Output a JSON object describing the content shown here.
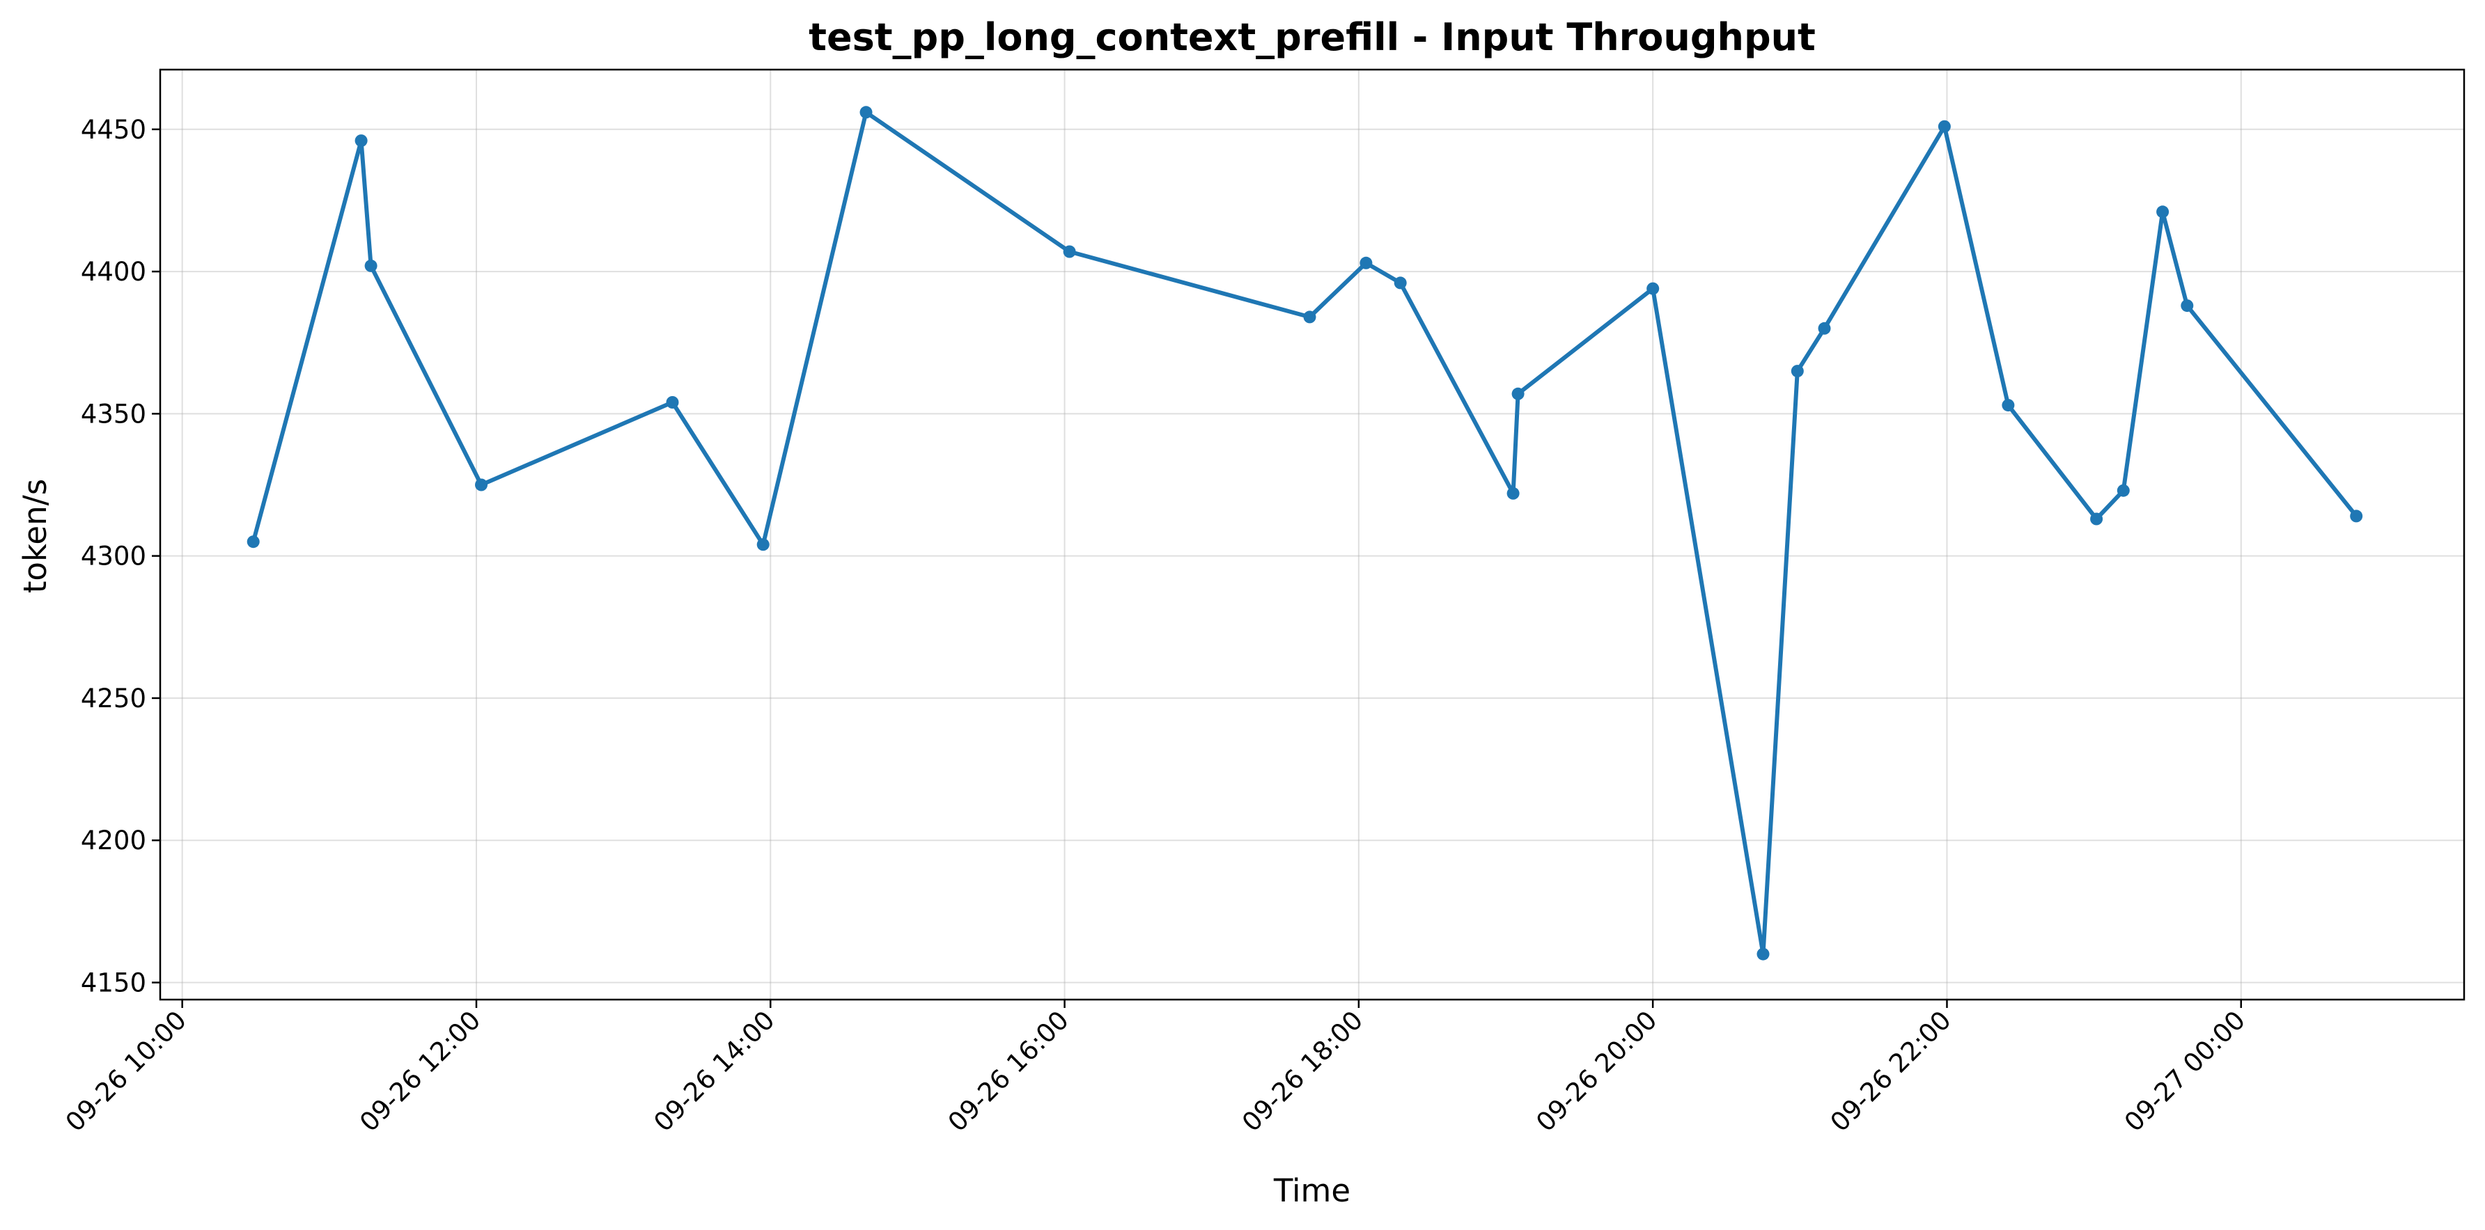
{
  "chart_data": {
    "type": "line",
    "title": "test_pp_long_context_prefill - Input Throughput",
    "xlabel": "Time",
    "ylabel": "token/s",
    "x_ticks": [
      "09-26 10:00",
      "09-26 12:00",
      "09-26 14:00",
      "09-26 16:00",
      "09-26 18:00",
      "09-26 20:00",
      "09-26 22:00",
      "09-27 00:00"
    ],
    "y_ticks": [
      4150,
      4200,
      4250,
      4300,
      4350,
      4400,
      4450
    ],
    "xlim": [
      "2024-09-26T09:51",
      "2024-09-27T01:31"
    ],
    "ylim": [
      4144,
      4471
    ],
    "grid": true,
    "line_color": "#1f77b4",
    "series": [
      {
        "points": [
          {
            "x": "2024-09-26T10:29",
            "y": 4305
          },
          {
            "x": "2024-09-26T11:13",
            "y": 4446
          },
          {
            "x": "2024-09-26T11:17",
            "y": 4402
          },
          {
            "x": "2024-09-26T12:02",
            "y": 4325
          },
          {
            "x": "2024-09-26T13:20",
            "y": 4354
          },
          {
            "x": "2024-09-26T13:57",
            "y": 4304
          },
          {
            "x": "2024-09-26T14:39",
            "y": 4456
          },
          {
            "x": "2024-09-26T16:02",
            "y": 4407
          },
          {
            "x": "2024-09-26T17:40",
            "y": 4384
          },
          {
            "x": "2024-09-26T18:03",
            "y": 4403
          },
          {
            "x": "2024-09-26T18:17",
            "y": 4396
          },
          {
            "x": "2024-09-26T19:03",
            "y": 4322
          },
          {
            "x": "2024-09-26T19:05",
            "y": 4357
          },
          {
            "x": "2024-09-26T20:00",
            "y": 4394
          },
          {
            "x": "2024-09-26T20:45",
            "y": 4160
          },
          {
            "x": "2024-09-26T20:59",
            "y": 4365
          },
          {
            "x": "2024-09-26T21:10",
            "y": 4380
          },
          {
            "x": "2024-09-26T21:59",
            "y": 4451
          },
          {
            "x": "2024-09-26T22:25",
            "y": 4353
          },
          {
            "x": "2024-09-26T23:01",
            "y": 4313
          },
          {
            "x": "2024-09-26T23:12",
            "y": 4323
          },
          {
            "x": "2024-09-26T23:28",
            "y": 4421
          },
          {
            "x": "2024-09-26T23:38",
            "y": 4388
          },
          {
            "x": "2024-09-27T00:47",
            "y": 4314
          }
        ]
      }
    ]
  }
}
